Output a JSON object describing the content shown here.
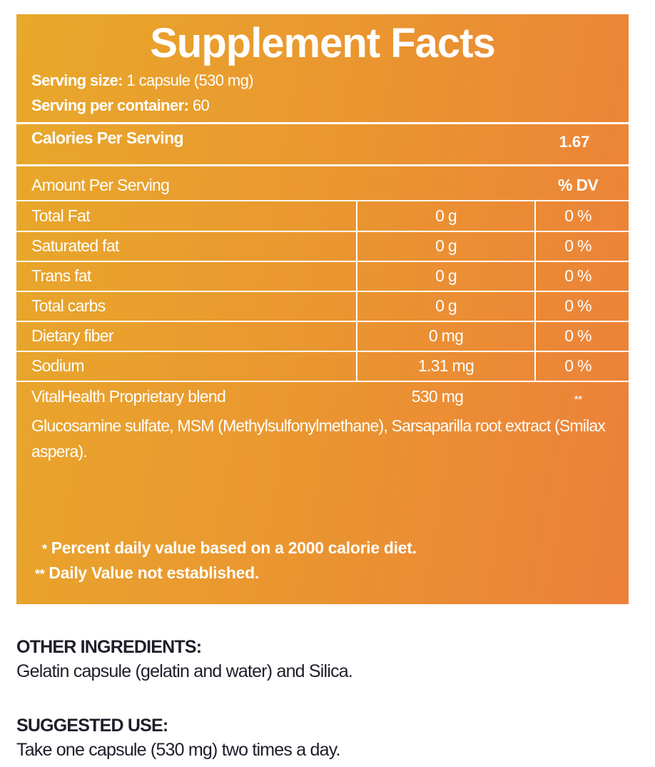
{
  "facts": {
    "title": "Supplement Facts",
    "serving_size_label": "Serving size:",
    "serving_size_value": " 1 capsule (530 mg)",
    "servings_per_container_label": "Serving per container:",
    "servings_per_container_value": " 60",
    "calories_label": "Calories Per Serving",
    "calories_value": "1.67",
    "header": {
      "amount_label": "Amount Per Serving",
      "dv_label": "% DV"
    },
    "rows": [
      {
        "name": "Total Fat",
        "amount": "0 g",
        "dv": "0 %"
      },
      {
        "name": "Saturated fat",
        "amount": "0 g",
        "dv": "0 %"
      },
      {
        "name": "Trans fat",
        "amount": "0 g",
        "dv": "0 %"
      },
      {
        "name": "Total carbs",
        "amount": "0 g",
        "dv": "0 %"
      },
      {
        "name": "Dietary fiber",
        "amount": "0 mg",
        "dv": "0 %"
      },
      {
        "name": "Sodium",
        "amount": "1.31 mg",
        "dv": "0 %"
      }
    ],
    "blend": {
      "name": "VitalHealth Proprietary blend",
      "amount": "530 mg",
      "dv": "**",
      "description": "Glucosamine sulfate, MSM (Methylsulfonylmethane), Sarsaparilla root extract (Smilax aspera)."
    },
    "footnotes": [
      {
        "mark": "*",
        "text": "Percent daily value based on a 2000 calorie diet."
      },
      {
        "mark": "**",
        "text": "Daily Value not established."
      }
    ]
  },
  "other_ingredients": {
    "title": "OTHER INGREDIENTS:",
    "text": "Gelatin capsule (gelatin and water) and Silica."
  },
  "suggested_use": {
    "title": "SUGGESTED USE:",
    "text": "Take one capsule (530 mg) two times a day."
  },
  "colors": {
    "panel_start": "#e8a82a",
    "panel_end": "#ec803a",
    "text_dark": "#1e1e2a",
    "text_light": "#ffffff"
  }
}
